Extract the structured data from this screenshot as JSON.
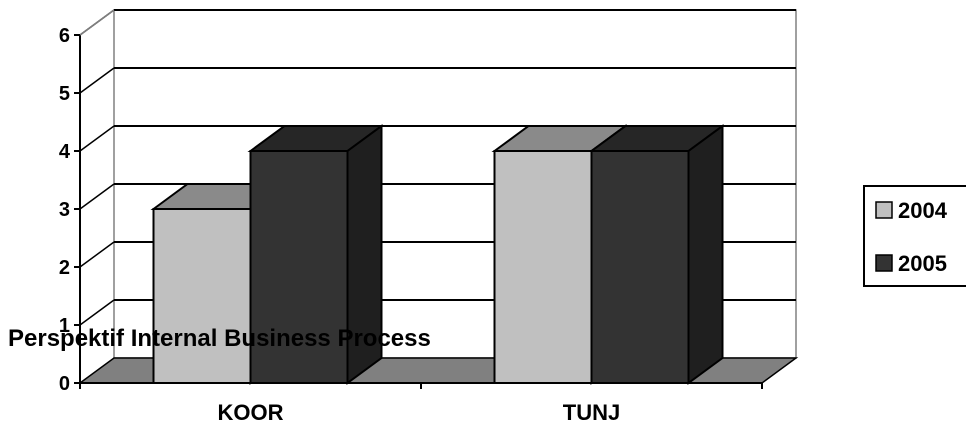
{
  "chart_data": {
    "type": "bar",
    "categories": [
      "KOOR",
      "TUNJ"
    ],
    "series": [
      {
        "name": "2004",
        "values": [
          3,
          4
        ],
        "color": "#c0c0c0"
      },
      {
        "name": "2005",
        "values": [
          4,
          4
        ],
        "color": "#333333"
      }
    ],
    "ylim": [
      0,
      6
    ],
    "yticks": [
      "0",
      "1",
      "2",
      "3",
      "4",
      "5",
      "6"
    ],
    "annotation": "Perspektif Internal Business Process",
    "grid": true,
    "legend_position": "right",
    "style": "3d-bar"
  }
}
